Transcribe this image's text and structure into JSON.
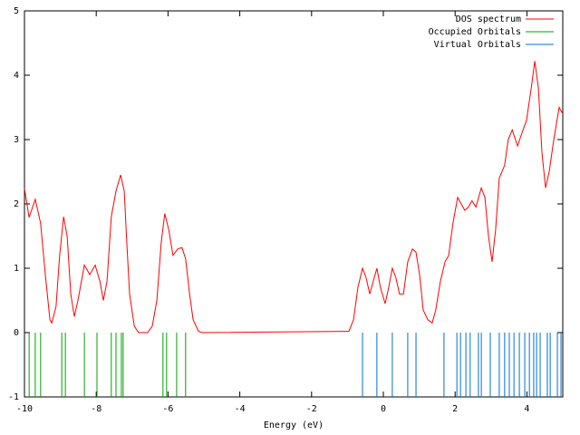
{
  "chart_data": {
    "type": "line",
    "x_label": "Energy (eV)",
    "xlim": [
      -10,
      5
    ],
    "xticks": [
      -10,
      -8,
      -6,
      -4,
      -2,
      0,
      2,
      4
    ],
    "ylim": [
      -1,
      5
    ],
    "yticks": [
      -1,
      0,
      1,
      2,
      3,
      4,
      5
    ],
    "legend": "top-right",
    "series": [
      {
        "name": "DOS spectrum",
        "color": "#ff0000",
        "x": [
          -10,
          -9.87,
          -9.7,
          -9.55,
          -9.42,
          -9.29,
          -9.24,
          -9.12,
          -9.02,
          -8.91,
          -8.81,
          -8.71,
          -8.61,
          -8.51,
          -8.33,
          -8.18,
          -8.03,
          -7.9,
          -7.8,
          -7.7,
          -7.58,
          -7.45,
          -7.32,
          -7.22,
          -7.15,
          -7.07,
          -6.94,
          -6.82,
          -6.57,
          -6.44,
          -6.31,
          -6.19,
          -6.09,
          -5.98,
          -5.86,
          -5.73,
          -5.61,
          -5.51,
          -5.4,
          -5.3,
          -5.15,
          -5.05,
          -0.96,
          -0.83,
          -0.71,
          -0.58,
          -0.48,
          -0.38,
          -0.28,
          -0.18,
          -0.08,
          0.05,
          0.15,
          0.25,
          0.35,
          0.45,
          0.56,
          0.68,
          0.81,
          0.91,
          1.01,
          1.11,
          1.24,
          1.36,
          1.46,
          1.59,
          1.72,
          1.82,
          1.94,
          2.07,
          2.17,
          2.27,
          2.37,
          2.47,
          2.58,
          2.73,
          2.83,
          2.93,
          3.03,
          3.13,
          3.23,
          3.38,
          3.48,
          3.59,
          3.74,
          3.86,
          3.99,
          4.12,
          4.22,
          4.32,
          4.42,
          4.52,
          4.62,
          4.75,
          4.9,
          5
        ],
        "values": [
          2.24,
          1.79,
          2.07,
          1.7,
          0.9,
          0.2,
          0.15,
          0.4,
          1.2,
          1.8,
          1.5,
          0.6,
          0.25,
          0.5,
          1.05,
          0.9,
          1.05,
          0.8,
          0.5,
          0.8,
          1.8,
          2.2,
          2.45,
          2.2,
          1.4,
          0.6,
          0.1,
          0,
          0,
          0.1,
          0.5,
          1.4,
          1.85,
          1.6,
          1.2,
          1.3,
          1.32,
          1.15,
          0.6,
          0.2,
          0.02,
          0,
          0.02,
          0.2,
          0.7,
          1.0,
          0.85,
          0.6,
          0.8,
          1.0,
          0.7,
          0.45,
          0.7,
          1.0,
          0.85,
          0.6,
          0.6,
          1.1,
          1.3,
          1.25,
          0.9,
          0.35,
          0.2,
          0.15,
          0.35,
          0.8,
          1.1,
          1.2,
          1.7,
          2.1,
          2.0,
          1.9,
          1.95,
          2.05,
          1.95,
          2.25,
          2.1,
          1.5,
          1.1,
          1.6,
          2.4,
          2.6,
          3.0,
          3.15,
          2.9,
          3.1,
          3.3,
          3.8,
          4.22,
          3.8,
          2.8,
          2.25,
          2.5,
          3.0,
          3.5,
          3.4
        ]
      },
      {
        "name": "Occupied Orbitals",
        "color": "#00a000",
        "x": [
          -9.87,
          -9.7,
          -9.55,
          -8.96,
          -8.86,
          -8.33,
          -7.98,
          -7.58,
          -7.45,
          -7.3,
          -7.25,
          -6.14,
          -6.04,
          -5.76,
          -5.51
        ]
      },
      {
        "name": "Virtual Orbitals",
        "color": "#0070d0",
        "x": [
          -0.58,
          -0.18,
          0.25,
          0.68,
          0.91,
          1.69,
          2.05,
          2.15,
          2.3,
          2.42,
          2.65,
          2.73,
          2.98,
          3.23,
          3.38,
          3.51,
          3.64,
          3.79,
          3.94,
          4.07,
          4.19,
          4.27,
          4.37,
          4.57,
          4.65,
          4.85,
          4.95
        ]
      }
    ]
  }
}
